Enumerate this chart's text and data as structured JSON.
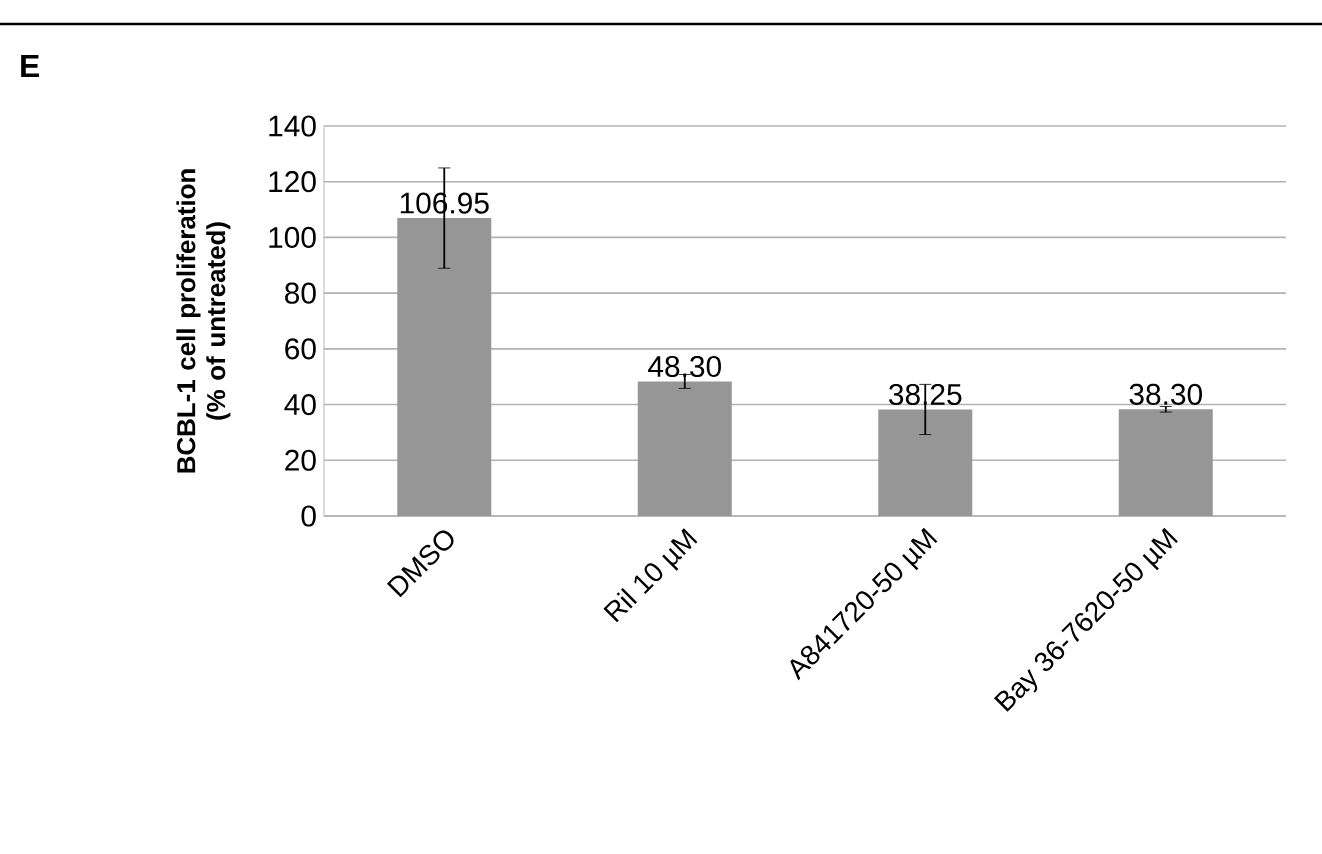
{
  "chart_data": {
    "type": "bar",
    "ylabel": "BCBL-1 cell proliferation (% of untreated)",
    "categories": [
      "DMSO",
      "Ril 10 µM",
      "A841720-50 µM",
      "Bay 36-7620-50 µM"
    ],
    "values": [
      106.95,
      48.3,
      38.25,
      38.3
    ],
    "value_labels": [
      "106.95",
      "48.30",
      "38.25",
      "38.30"
    ],
    "errors": [
      18,
      2.5,
      9,
      1
    ],
    "color": "#969696",
    "ylim": [
      0,
      140
    ],
    "yticks": [
      0,
      20,
      40,
      60,
      80,
      100,
      120,
      140
    ],
    "grid": "y",
    "annotations": [
      "E"
    ]
  }
}
